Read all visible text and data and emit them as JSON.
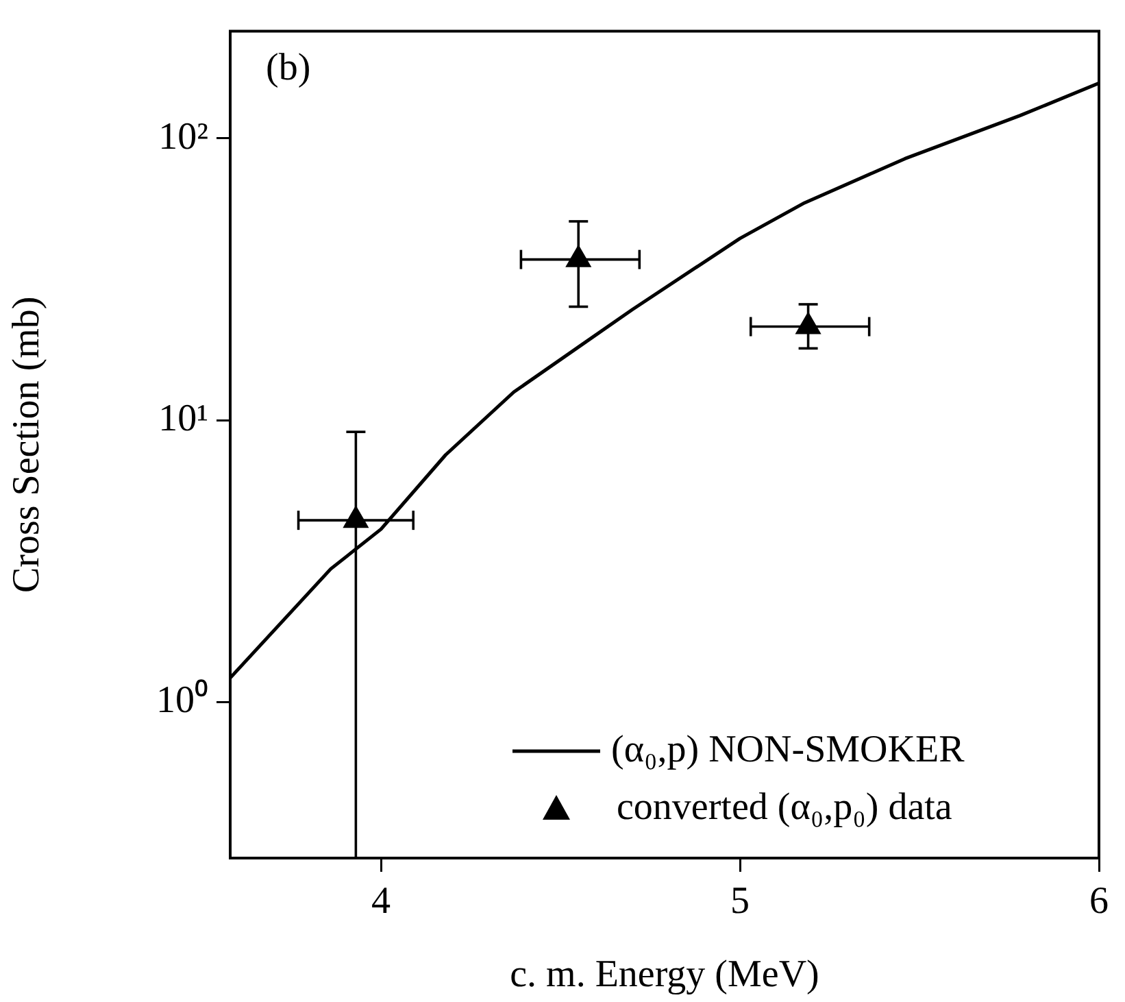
{
  "chart_data": {
    "type": "line",
    "xlabel": "c. m. Energy (MeV)",
    "ylabel": "Cross Section (mb)",
    "annotations": [
      "(b)"
    ],
    "xlim": [
      3.58,
      6
    ],
    "xticks": [
      4,
      5,
      6
    ],
    "ylim": [
      0.28,
      240
    ],
    "yticks": [
      {
        "value": 1,
        "label": "10⁰"
      },
      {
        "value": 10,
        "label": "10¹"
      },
      {
        "value": 100,
        "label": "10²"
      }
    ],
    "log": "y",
    "grid": false,
    "legend": "bottom right",
    "series": [
      {
        "name": "(α₀,p) NON-SMOKER",
        "color": "#000000",
        "marker": "none",
        "line_style": "solid",
        "x": [
          3.58,
          3.86,
          4.0,
          4.18,
          4.37,
          4.55,
          4.7,
          5.0,
          5.18,
          5.46,
          5.78,
          6.0
        ],
        "values": [
          1.22,
          2.97,
          4.11,
          7.54,
          12.6,
          18.2,
          24.7,
          44.2,
          59.1,
          84.8,
          120.5,
          157
        ]
      },
      {
        "name": "converted (α₀,p₀) data",
        "type": "scatter",
        "color": "#000000",
        "marker": "triangle",
        "x": [
          3.93,
          4.55,
          5.19
        ],
        "values": [
          4.42,
          37.2,
          21.5
        ],
        "errors": [
          [
            0.28,
            9.1
          ],
          [
            25.3,
            50.8
          ],
          [
            18.0,
            25.8
          ]
        ],
        "xerrors": [
          [
            3.77,
            4.09
          ],
          [
            4.39,
            4.72
          ],
          [
            5.03,
            5.36
          ]
        ]
      }
    ]
  }
}
